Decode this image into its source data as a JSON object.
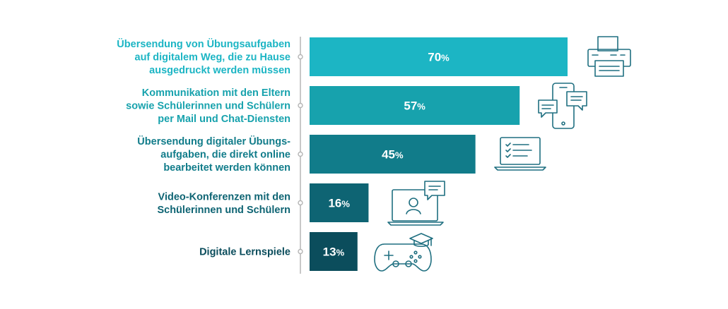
{
  "chart_data": {
    "type": "bar",
    "orientation": "horizontal",
    "unit": "%",
    "xlim": [
      0,
      100
    ],
    "categories": [
      [
        "Übersendung von Übungsaufgaben",
        "auf digitalem Weg, die zu Hause",
        "ausgedruckt werden müssen"
      ],
      [
        "Kommunikation mit den Eltern",
        "sowie Schülerinnen und Schülern",
        "per Mail und Chat-Diensten"
      ],
      [
        "Übersendung digitaler Übungs-",
        "aufgaben, die direkt online",
        "bearbeitet werden können"
      ],
      [
        "Video-Konferenzen mit den",
        "Schülerinnen und Schülern"
      ],
      [
        "Digitale Lernspiele"
      ]
    ],
    "values": [
      70,
      57,
      45,
      16,
      13
    ],
    "value_labels": [
      "70",
      "57",
      "45",
      "16",
      "13"
    ],
    "bar_colors": [
      "#1cb5c4",
      "#17a2ad",
      "#117c8a",
      "#0e6473",
      "#0b4d5c"
    ],
    "label_colors": [
      "#1cb5c4",
      "#17a2ad",
      "#117c8a",
      "#0e6473",
      "#0b4d5c"
    ],
    "icons": [
      "printer-icon",
      "chat-phone-icon",
      "laptop-checklist-icon",
      "video-conference-icon",
      "gamepad-icon"
    ],
    "axis_line_color": "#b5b5b5"
  }
}
